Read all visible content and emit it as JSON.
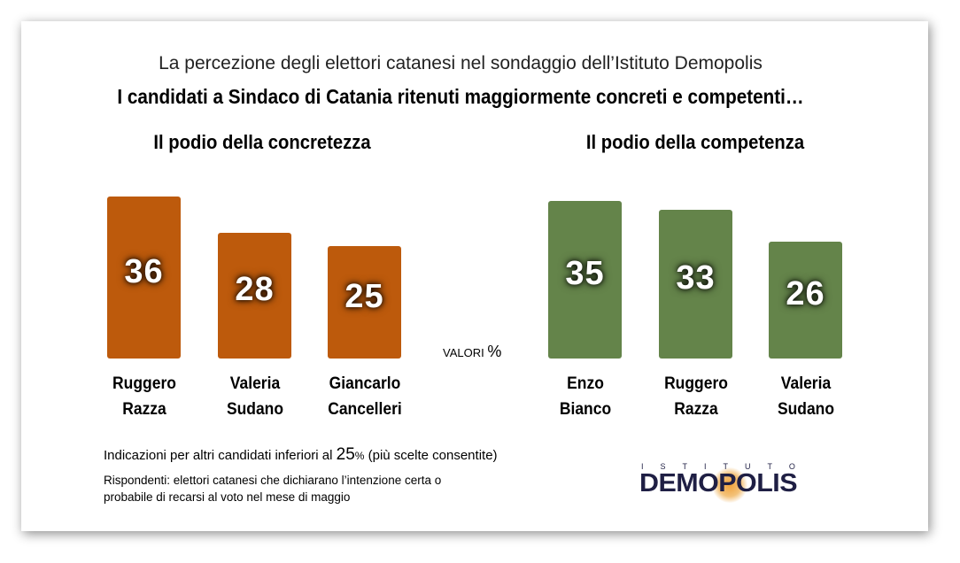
{
  "subtitle": "La percezione degli elettori catanesi nel sondaggio dell’Istituto Demopolis",
  "title": "I candidati a Sindaco di Catania ritenuti maggiormente concreti e competenti…",
  "unit_label": "VALORI",
  "unit_symbol": "%",
  "note": {
    "prefix": "Indicazioni per altri candidati inferiori al ",
    "value": "25",
    "pct": "%",
    "suffix": " (più scelte consentite)"
  },
  "respondents": "Rispondenti: elettori catanesi che dichiarano l’intenzione certa o probabile di recarsi al voto nel mese di maggio",
  "logo": {
    "top": "ISTITUTO",
    "main": "DEMOPOLIS"
  },
  "chart_data": [
    {
      "type": "bar",
      "title": "Il podio della concretezza",
      "color": "#bd5a0c",
      "categories": [
        [
          "Ruggero",
          "Razza"
        ],
        [
          "Valeria",
          "Sudano"
        ],
        [
          "Giancarlo",
          "Cancelleri"
        ]
      ],
      "values": [
        36,
        28,
        25
      ],
      "ylabel": "%",
      "ylim": [
        0,
        36
      ]
    },
    {
      "type": "bar",
      "title": "Il podio della competenza",
      "color": "#64844a",
      "categories": [
        [
          "Enzo",
          "Bianco"
        ],
        [
          "Ruggero",
          "Razza"
        ],
        [
          "Valeria",
          "Sudano"
        ]
      ],
      "values": [
        35,
        33,
        26
      ],
      "ylabel": "%",
      "ylim": [
        0,
        36
      ]
    }
  ]
}
